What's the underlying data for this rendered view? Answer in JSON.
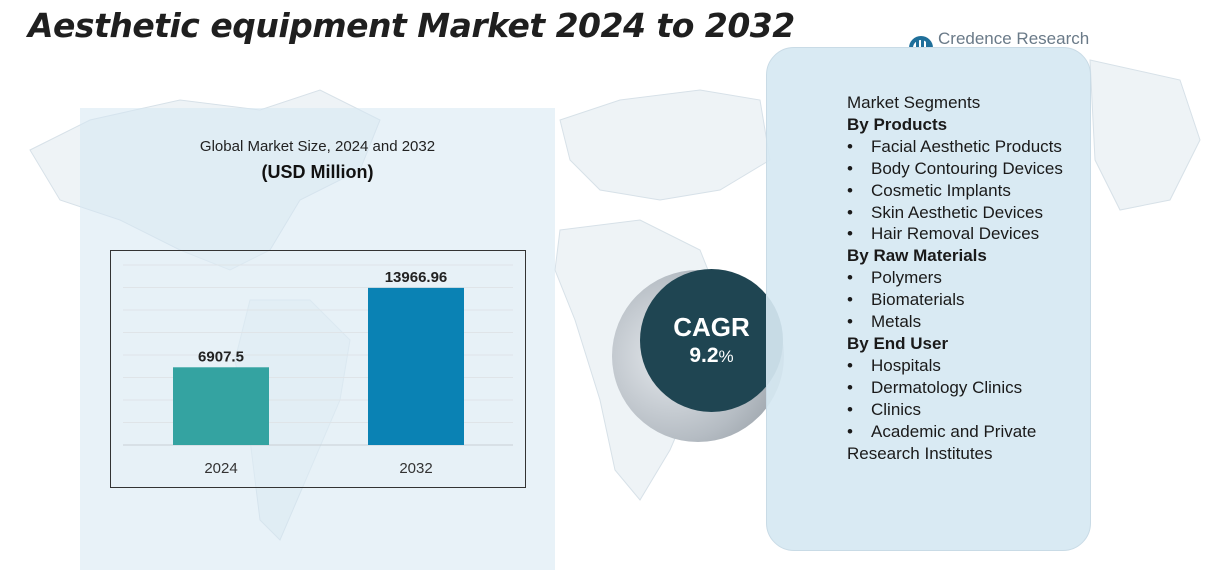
{
  "title": "Aesthetic equipment Market 2024 to 2032",
  "logo": {
    "text": "Credence Research",
    "icon": "credence-research-logo-icon"
  },
  "colors": {
    "bar_2024": "#34a3a1",
    "bar_2032": "#0a82b4",
    "cagr_circle": "#1f4552",
    "panel": "#d6e8f2"
  },
  "chart_data": {
    "type": "bar",
    "title": "Global Market Size, 2024 and 2032",
    "unit": "(USD Million)",
    "categories": [
      "2024",
      "2032"
    ],
    "values": [
      6907.5,
      13966.96
    ],
    "data_labels": [
      "6907.5",
      "13966.96"
    ],
    "ylim": [
      0,
      16000
    ],
    "grid": true,
    "legend": "none"
  },
  "cagr": {
    "label": "CAGR",
    "value": "9.2",
    "unit": "%"
  },
  "segments": {
    "heading": "Market Segments",
    "groups": [
      {
        "title": "By Products",
        "items": [
          "Facial Aesthetic Products",
          "Body Contouring Devices",
          "Cosmetic Implants",
          "Skin Aesthetic Devices",
          "Hair Removal Devices"
        ]
      },
      {
        "title": "By Raw Materials",
        "items": [
          "Polymers",
          "Biomaterials",
          "Metals"
        ]
      },
      {
        "title": "By End User",
        "items": [
          "Hospitals",
          "Dermatology Clinics",
          "Clinics",
          "Academic and Private Research Institutes"
        ]
      }
    ]
  }
}
